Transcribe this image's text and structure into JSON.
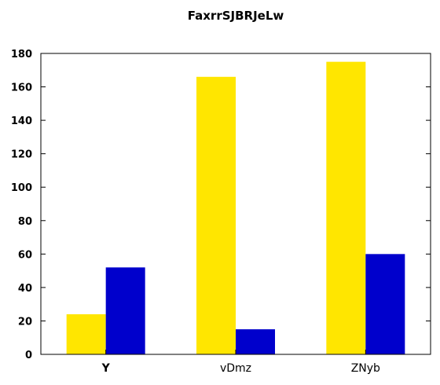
{
  "chart_data": {
    "type": "bar",
    "title": "FaxrrSJBRJeLw",
    "xlabel": "",
    "ylabel": "",
    "categories": [
      "Y",
      "vDmz",
      "ZNyb"
    ],
    "series": [
      {
        "values": [
          24,
          166,
          175
        ],
        "color": "#ffe600"
      },
      {
        "values": [
          52,
          15,
          60
        ],
        "color": "#0000cc"
      }
    ],
    "ylim": [
      0,
      180
    ],
    "yticks": [
      0,
      20,
      40,
      60,
      80,
      100,
      120,
      140,
      160,
      180
    ],
    "grid": false,
    "legend": "none"
  }
}
